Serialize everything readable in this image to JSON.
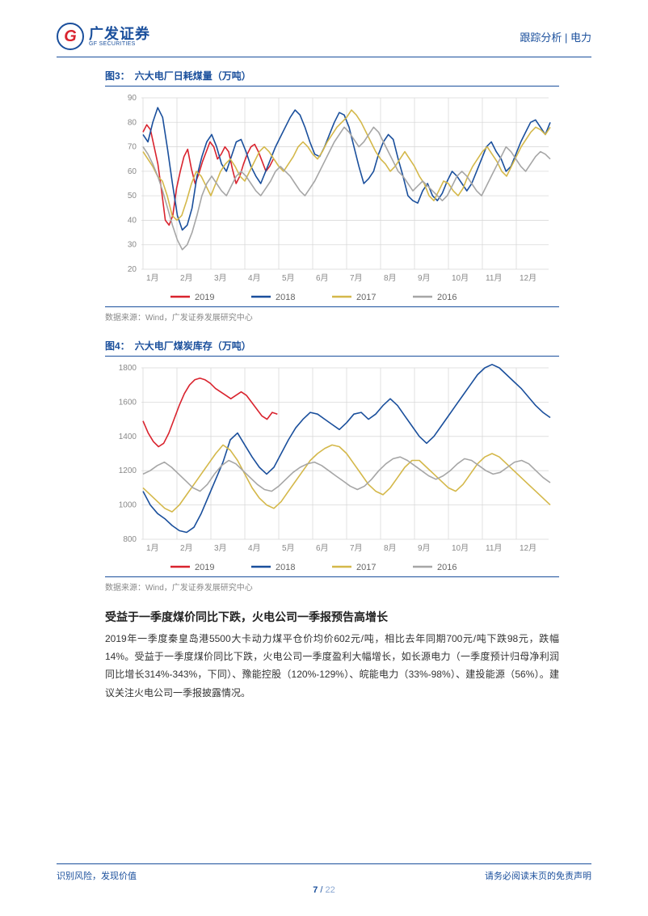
{
  "header": {
    "logo_cn": "广发证券",
    "logo_en": "GF SECURITIES",
    "right": "跟踪分析 | 电力"
  },
  "chart3": {
    "type": "line",
    "label": "图3：",
    "title": "六大电厂日耗煤量（万吨）",
    "source": "数据来源：Wind，广发证券发展研究中心",
    "x_labels": [
      "1月",
      "2月",
      "3月",
      "4月",
      "5月",
      "6月",
      "7月",
      "8月",
      "9月",
      "10月",
      "11月",
      "12月"
    ],
    "ylim": [
      20,
      90
    ],
    "yticks": [
      20,
      30,
      40,
      50,
      60,
      70,
      80,
      90
    ],
    "grid_color": "#d9d9d9",
    "background_color": "#ffffff",
    "legend_items": [
      {
        "label": "2019",
        "color": "#d9232e"
      },
      {
        "label": "2018",
        "color": "#1a4f9c"
      },
      {
        "label": "2017",
        "color": "#d4b84a"
      },
      {
        "label": "2016",
        "color": "#a6a6a6"
      }
    ],
    "series": {
      "2019": [
        76,
        79,
        77,
        70,
        63,
        52,
        40,
        38,
        42,
        53,
        60,
        66,
        69,
        61,
        55,
        59,
        64,
        68,
        72,
        70,
        65,
        67,
        70,
        68,
        61,
        55,
        58,
        63,
        67,
        70,
        71,
        68,
        64,
        60,
        62,
        65
      ],
      "2018": [
        75,
        72,
        80,
        86,
        82,
        69,
        55,
        42,
        36,
        38,
        45,
        58,
        66,
        72,
        75,
        70,
        63,
        60,
        66,
        72,
        73,
        68,
        62,
        58,
        55,
        60,
        65,
        70,
        74,
        78,
        82,
        85,
        83,
        78,
        72,
        67,
        66,
        70,
        75,
        80,
        84,
        83,
        78,
        70,
        62,
        55,
        57,
        60,
        67,
        72,
        75,
        73,
        65,
        58,
        50,
        48,
        47,
        52,
        55,
        50,
        48,
        51,
        56,
        60,
        58,
        55,
        52,
        55,
        60,
        65,
        70,
        72,
        68,
        65,
        60,
        62,
        67,
        72,
        76,
        80,
        81,
        78,
        75,
        80
      ],
      "2017": [
        68,
        65,
        62,
        58,
        56,
        50,
        42,
        40,
        42,
        48,
        55,
        60,
        58,
        54,
        50,
        55,
        60,
        63,
        65,
        62,
        58,
        56,
        60,
        64,
        68,
        70,
        68,
        65,
        62,
        60,
        63,
        66,
        70,
        72,
        70,
        67,
        65,
        68,
        72,
        75,
        78,
        80,
        82,
        85,
        83,
        80,
        76,
        72,
        68,
        65,
        63,
        60,
        62,
        65,
        68,
        65,
        62,
        58,
        55,
        50,
        48,
        52,
        56,
        55,
        52,
        50,
        53,
        58,
        62,
        65,
        68,
        70,
        67,
        64,
        60,
        58,
        62,
        66,
        70,
        73,
        76,
        78,
        77,
        75,
        78
      ],
      "2016": [
        70,
        67,
        63,
        58,
        52,
        45,
        38,
        32,
        28,
        30,
        35,
        42,
        50,
        55,
        58,
        55,
        52,
        50,
        54,
        58,
        60,
        58,
        55,
        52,
        50,
        53,
        56,
        60,
        62,
        60,
        58,
        55,
        52,
        50,
        53,
        56,
        60,
        64,
        68,
        72,
        75,
        78,
        76,
        73,
        70,
        72,
        75,
        78,
        76,
        72,
        68,
        64,
        60,
        58,
        55,
        52,
        54,
        56,
        54,
        52,
        50,
        48,
        50,
        54,
        58,
        60,
        58,
        55,
        52,
        50,
        54,
        58,
        62,
        66,
        70,
        68,
        65,
        62,
        60,
        63,
        66,
        68,
        67,
        65
      ]
    }
  },
  "chart4": {
    "type": "line",
    "label": "图4：",
    "title": "六大电厂煤炭库存（万吨）",
    "source": "数据来源：Wind，广发证券发展研究中心",
    "x_labels": [
      "1月",
      "2月",
      "3月",
      "4月",
      "5月",
      "6月",
      "7月",
      "8月",
      "9月",
      "10月",
      "11月",
      "12月"
    ],
    "ylim": [
      800,
      1800
    ],
    "yticks": [
      800,
      1000,
      1200,
      1400,
      1600,
      1800
    ],
    "grid_color": "#d9d9d9",
    "background_color": "#ffffff",
    "legend_items": [
      {
        "label": "2019",
        "color": "#d9232e"
      },
      {
        "label": "2018",
        "color": "#1a4f9c"
      },
      {
        "label": "2017",
        "color": "#d4b84a"
      },
      {
        "label": "2016",
        "color": "#a6a6a6"
      }
    ],
    "series": {
      "2019": [
        1490,
        1420,
        1370,
        1340,
        1360,
        1420,
        1500,
        1580,
        1650,
        1700,
        1730,
        1740,
        1730,
        1710,
        1680,
        1660,
        1640,
        1620,
        1640,
        1660,
        1640,
        1600,
        1560,
        1520,
        1500,
        1540,
        1530
      ],
      "2018": [
        1080,
        1000,
        950,
        920,
        880,
        850,
        840,
        870,
        950,
        1050,
        1150,
        1250,
        1380,
        1420,
        1350,
        1280,
        1220,
        1180,
        1220,
        1300,
        1380,
        1450,
        1500,
        1540,
        1530,
        1500,
        1470,
        1440,
        1480,
        1530,
        1540,
        1500,
        1530,
        1580,
        1620,
        1580,
        1520,
        1460,
        1400,
        1360,
        1400,
        1460,
        1520,
        1580,
        1640,
        1700,
        1760,
        1800,
        1820,
        1800,
        1760,
        1720,
        1680,
        1630,
        1580,
        1540,
        1510
      ],
      "2017": [
        1100,
        1060,
        1020,
        980,
        960,
        1000,
        1060,
        1120,
        1180,
        1240,
        1300,
        1350,
        1320,
        1260,
        1180,
        1100,
        1040,
        1000,
        980,
        1020,
        1080,
        1140,
        1200,
        1260,
        1300,
        1330,
        1350,
        1340,
        1300,
        1240,
        1180,
        1120,
        1080,
        1060,
        1100,
        1160,
        1220,
        1260,
        1260,
        1220,
        1180,
        1140,
        1100,
        1080,
        1120,
        1180,
        1240,
        1280,
        1300,
        1280,
        1240,
        1200,
        1160,
        1120,
        1080,
        1040,
        1000
      ],
      "2016": [
        1180,
        1200,
        1230,
        1250,
        1220,
        1180,
        1140,
        1100,
        1080,
        1120,
        1180,
        1230,
        1260,
        1240,
        1200,
        1160,
        1120,
        1090,
        1080,
        1110,
        1150,
        1190,
        1220,
        1240,
        1250,
        1230,
        1200,
        1170,
        1140,
        1110,
        1090,
        1110,
        1150,
        1200,
        1240,
        1270,
        1280,
        1260,
        1230,
        1200,
        1170,
        1150,
        1170,
        1200,
        1240,
        1270,
        1260,
        1230,
        1200,
        1180,
        1190,
        1220,
        1250,
        1260,
        1240,
        1200,
        1160,
        1130
      ]
    }
  },
  "section": {
    "heading": "受益于一季度煤价同比下跌，火电公司一季报预告高增长",
    "body": "2019年一季度秦皇岛港5500大卡动力煤平仓价均价602元/吨，相比去年同期700元/吨下跌98元，跌幅14%。受益于一季度煤价同比下跌，火电公司一季度盈利大幅增长，如长源电力（一季度预计归母净利润同比增长314%-343%，下同）、豫能控股（120%-129%）、皖能电力（33%-98%）、建投能源（56%）。建议关注火电公司一季报披露情况。"
  },
  "footer": {
    "left": "识别风险，发现价值",
    "right": "请务必阅读末页的免责声明",
    "page_current": "7",
    "page_sep": " / ",
    "page_total": "22"
  }
}
